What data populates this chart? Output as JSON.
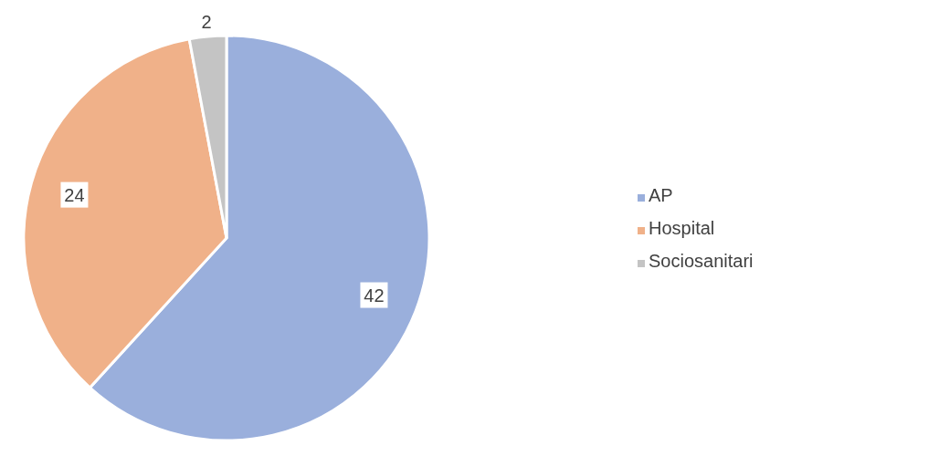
{
  "chart_data": {
    "type": "pie",
    "categories": [
      "AP",
      "Hospital",
      "Sociosanitari"
    ],
    "values": [
      42,
      24,
      2
    ],
    "colors": [
      "#9aafdc",
      "#f0b189",
      "#c4c4c4"
    ],
    "data_labels": true,
    "legend": "right"
  }
}
